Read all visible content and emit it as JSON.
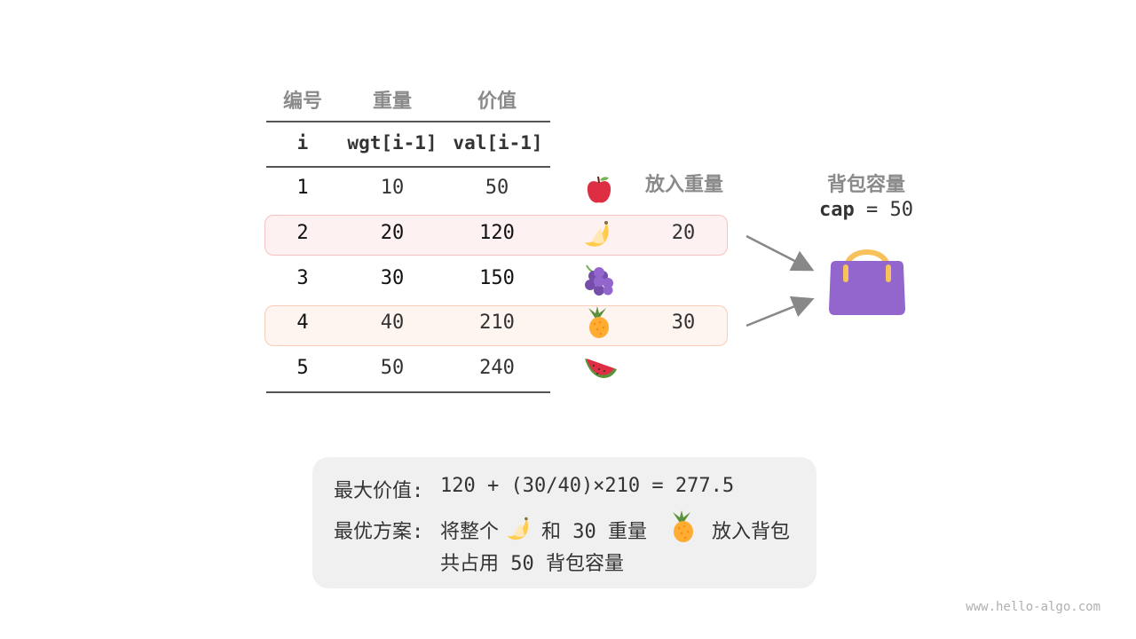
{
  "table": {
    "headers": [
      "编号",
      "重量",
      "价值"
    ],
    "subheaders": [
      "i",
      "wgt[i-1]",
      "val[i-1]"
    ],
    "rows": [
      {
        "i": "1",
        "wgt": "10",
        "val": "50",
        "item": "apple-icon",
        "put": ""
      },
      {
        "i": "2",
        "wgt": "20",
        "val": "120",
        "item": "banana-icon",
        "put": "20"
      },
      {
        "i": "3",
        "wgt": "30",
        "val": "150",
        "item": "grapes-icon",
        "put": ""
      },
      {
        "i": "4",
        "wgt": "40",
        "val": "210",
        "item": "pineapple-icon",
        "put": "30"
      },
      {
        "i": "5",
        "wgt": "50",
        "val": "240",
        "item": "watermelon-icon",
        "put": ""
      }
    ],
    "put_header": "放入重量"
  },
  "bag": {
    "title": "背包容量",
    "cap_label": "cap",
    "cap_value": "= 50",
    "icon": "handbag-icon"
  },
  "summary": {
    "max_label": "最大价值:",
    "max_formula": "120 + (30/40)×210 = 277.5",
    "plan_label": "最优方案:",
    "plan_part1": "将整个",
    "plan_part2": "和 30 重量",
    "plan_part3": "放入背包",
    "plan_line2": "共占用 50 背包容量"
  },
  "watermark": "www.hello-algo.com",
  "colors": {
    "highlight1": "#fdf1f1",
    "highlight1_border": "#f6c3c0",
    "highlight2": "#fef4f0",
    "highlight2_border": "#f9cdb9",
    "bag": "#9266cc",
    "handle": "#f7c25b"
  }
}
